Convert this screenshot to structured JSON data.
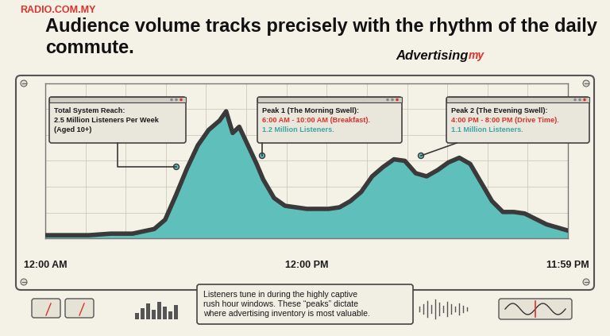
{
  "chart_data": {
    "type": "area",
    "title": "Audience volume tracks precisely with the rhythm of the daily commute.",
    "brand": "RADIO.COM.MY",
    "source": [
      "Advertising",
      "my"
    ],
    "x": [
      0,
      1,
      2,
      3,
      4,
      5,
      5.5,
      6,
      6.5,
      7,
      7.5,
      8,
      8.3,
      8.6,
      8.9,
      9.3,
      9.7,
      10,
      10.5,
      11,
      12,
      13,
      13.5,
      14,
      14.5,
      15,
      15.5,
      16,
      16.5,
      17,
      17.5,
      18,
      18.5,
      19,
      19.5,
      20,
      20.5,
      21,
      21.5,
      22,
      23,
      23.983
    ],
    "values": [
      2,
      2,
      2,
      3,
      3,
      6,
      12,
      28,
      45,
      60,
      70,
      76,
      82,
      68,
      72,
      60,
      48,
      38,
      26,
      21,
      19,
      19,
      20,
      24,
      30,
      40,
      46,
      51,
      50,
      42,
      40,
      44,
      49,
      52,
      48,
      36,
      24,
      17,
      17,
      16,
      9,
      5
    ],
    "color": "#5fbfba",
    "xlim": [
      0,
      23.983
    ],
    "xticks": [
      {
        "value": 0,
        "label": "12:00 AM"
      },
      {
        "value": 12,
        "label": "12:00 PM"
      },
      {
        "value": 23.983,
        "label": "11:59 PM"
      }
    ],
    "ylim": [
      0,
      100
    ],
    "grid": true,
    "tick_labels": "x",
    "annotations": [
      {
        "lines": [
          "Total System Reach:",
          "2.5 Million Listeners Per Week",
          "(Aged 10+)"
        ],
        "colors": [
          "#1a1a1a",
          "#1a1a1a",
          "#1a1a1a"
        ]
      },
      {
        "lines": [
          "Peak 1 (The Morning Swell):",
          "6:00 AM - 10:00 AM (Breakfast).",
          "1.2 Million Listeners."
        ],
        "colors": [
          "#1a1a1a",
          "#d9342b",
          "#3aa6a6"
        ]
      },
      {
        "lines": [
          "Peak 2 (The Evening Swell):",
          "4:00 PM - 8:00 PM (Drive Time).",
          "1.1 Million Listeners."
        ],
        "colors": [
          "#1a1a1a",
          "#d9342b",
          "#3aa6a6"
        ]
      }
    ],
    "caption": [
      "Listeners tune in during the highly captive",
      "rush hour windows. These “peaks” dictate",
      "where advertising inventory is most valuable."
    ]
  }
}
